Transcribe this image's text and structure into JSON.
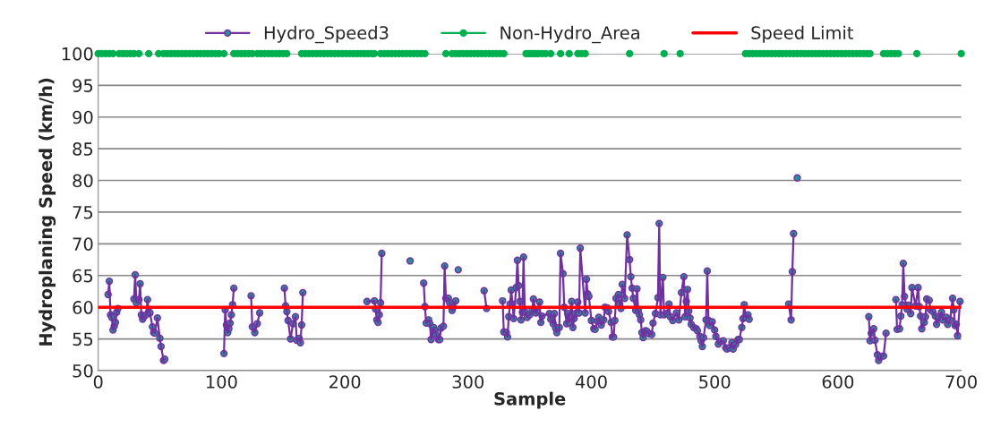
{
  "chart_data": {
    "type": "line",
    "xlabel": "Sample",
    "ylabel": "Hydroplaning Speed (km/h)",
    "xlim": [
      0,
      700
    ],
    "xticks": [
      0,
      100,
      200,
      300,
      400,
      500,
      600,
      700
    ],
    "ylim": [
      50,
      100
    ],
    "yticks": [
      50,
      55,
      60,
      65,
      70,
      75,
      80,
      85,
      90,
      95,
      100
    ],
    "grid": "y",
    "legend": "top",
    "marker": "circle",
    "series": [
      {
        "name": "Hydro_Speed3",
        "color": "#7030a0",
        "x": [
          8,
          9,
          10,
          11,
          12,
          13,
          14,
          15,
          16,
          22,
          29,
          30,
          31,
          33,
          34,
          35,
          36,
          37,
          39,
          40,
          41,
          42,
          44,
          45,
          46,
          48,
          50,
          51,
          53,
          54,
          78,
          102,
          103,
          104,
          105,
          106,
          107,
          108,
          109,
          110,
          117,
          124,
          125,
          127,
          129,
          131,
          140,
          151,
          152,
          153,
          154,
          156,
          158,
          160,
          161,
          163,
          164,
          165,
          166,
          190,
          218,
          224,
          225,
          226,
          227,
          228,
          229,
          230,
          240,
          253,
          258,
          264,
          265,
          266,
          268,
          269,
          270,
          272,
          273,
          274,
          276,
          277,
          278,
          280,
          281,
          282,
          284,
          285,
          287,
          288,
          290,
          291,
          292,
          300,
          313,
          315,
          320,
          328,
          329,
          331,
          332,
          333,
          334,
          335,
          336,
          337,
          339,
          340,
          341,
          342,
          343,
          344,
          345,
          346,
          348,
          350,
          352,
          353,
          355,
          356,
          358,
          359,
          360,
          366,
          367,
          369,
          370,
          371,
          372,
          374,
          375,
          377,
          378,
          380,
          381,
          382,
          384,
          385,
          386,
          387,
          389,
          390,
          391,
          395,
          396,
          397,
          398,
          400,
          402,
          403,
          405,
          406,
          408,
          410,
          411,
          413,
          414,
          416,
          417,
          418,
          419,
          420,
          422,
          423,
          424,
          425,
          427,
          429,
          431,
          432,
          433,
          434,
          436,
          437,
          438,
          439,
          440,
          441,
          442,
          444,
          445,
          447,
          449,
          450,
          452,
          454,
          455,
          456,
          458,
          459,
          461,
          463,
          464,
          466,
          469,
          471,
          473,
          475,
          476,
          477,
          478,
          479,
          480,
          481,
          483,
          485,
          486,
          488,
          489,
          490,
          491,
          493,
          494,
          495,
          496,
          498,
          500,
          501,
          503,
          505,
          507,
          509,
          510,
          512,
          514,
          515,
          517,
          519,
          520,
          522,
          523,
          524,
          525,
          527,
          528,
          545,
          560,
          562,
          563,
          564,
          566,
          567,
          600,
          625,
          626,
          627,
          628,
          629,
          630,
          632,
          633,
          635,
          637,
          639,
          643,
          647,
          648,
          650,
          651,
          652,
          653,
          654,
          656,
          657,
          659,
          660,
          663,
          665,
          666,
          667,
          668,
          670,
          671,
          672,
          674,
          675,
          677,
          679,
          680,
          682,
          684,
          685,
          688,
          689,
          691,
          693,
          694,
          695,
          696,
          697,
          699
        ],
        "values": [
          62.0,
          64.1,
          58.8,
          58.4,
          56.4,
          57.0,
          57.6,
          59.2,
          59.8,
          null,
          61.3,
          65.1,
          60.7,
          61.2,
          63.7,
          58.8,
          58.1,
          58.5,
          58.8,
          61.2,
          59.3,
          59.1,
          56.9,
          56.0,
          55.9,
          58.3,
          55.1,
          53.8,
          51.6,
          51.8,
          null,
          52.7,
          59.6,
          57.2,
          56.0,
          56.6,
          57.5,
          58.8,
          60.4,
          63.0,
          null,
          61.8,
          56.9,
          56.0,
          57.4,
          59.1,
          null,
          63.0,
          60.2,
          59.3,
          57.9,
          55.0,
          57.4,
          58.5,
          54.8,
          55.1,
          54.4,
          57.2,
          62.3,
          null,
          60.9,
          61.0,
          59.7,
          58.0,
          57.6,
          58.8,
          60.7,
          68.5,
          null,
          67.3,
          null,
          63.8,
          60.1,
          57.5,
          58.0,
          57.4,
          54.9,
          56.8,
          56.3,
          55.7,
          54.9,
          54.9,
          56.7,
          57.0,
          66.5,
          61.4,
          61.4,
          60.7,
          59.5,
          60.0,
          61.0,
          null,
          65.9,
          null,
          62.6,
          59.8,
          null,
          61.0,
          56.1,
          56.0,
          55.3,
          58.5,
          60.5,
          62.7,
          60.5,
          58.2,
          63.1,
          67.4,
          63.4,
          60.9,
          58.0,
          59.2,
          67.9,
          59.3,
          58.4,
          58.8,
          59.5,
          61.3,
          59.1,
          59.5,
          60.8,
          57.6,
          58.6,
          59.0,
          58.1,
          57.4,
          59.0,
          56.7,
          56.0,
          56.8,
          68.5,
          65.3,
          60.0,
          57.4,
          59.0,
          57.6,
          60.9,
          56.8,
          58.2,
          59.0,
          60.8,
          59.1,
          69.3,
          59.1,
          64.4,
          62.1,
          61.7,
          57.9,
          56.6,
          56.5,
          57.8,
          58.4,
          57.2,
          58.0,
          60.0,
          59.9,
          59.3,
          57.6,
          55.3,
          55.3,
          57.9,
          61.4,
          62.0,
          60.5,
          59.8,
          63.6,
          61.4,
          71.4,
          67.5,
          64.8,
          63.0,
          61.4,
          59.5,
          62.9,
          59.5,
          58.8,
          58.0,
          56.0,
          55.2,
          56.3,
          56.2,
          55.8,
          55.7,
          57.5,
          59.0,
          61.5,
          73.2,
          58.8,
          64.7,
          58.8,
          59.0,
          60.5,
          58.5,
          57.9,
          59.1,
          58.0,
          62.3,
          64.8,
          58.5,
          60.9,
          62.8,
          59.4,
          58.3,
          57.3,
          56.8,
          56.6,
          56.3,
          55.4,
          54.7,
          53.8,
          55.2,
          58.0,
          65.7,
          57.9,
          57.1,
          57.7,
          56.4,
          55.4,
          54.2,
          54.6,
          54.7,
          53.6,
          53.4,
          53.6,
          54.4,
          53.4,
          54.1,
          54.9,
          54.9,
          56.8,
          58.2,
          60.4,
          58.4,
          58.8,
          58.1,
          null,
          60.5,
          58.0,
          65.6,
          71.6,
          null,
          80.4,
          null,
          58.5,
          54.7,
          55.9,
          56.4,
          56.6,
          54.8,
          52.5,
          51.6,
          52.2,
          52.3,
          55.9,
          null,
          61.2,
          56.5,
          56.6,
          58.6,
          60.4,
          66.9,
          61.7,
          59.7,
          60.3,
          59.0,
          63.1,
          60.2,
          63.1,
          60.1,
          58.6,
          56.6,
          57.6,
          58.5,
          61.3,
          61.1,
          59.6,
          59.3,
          58.6,
          57.3,
          58.3,
          59.2,
          58.0,
          58.4,
          57.3,
          58.0,
          61.4,
          59.6,
          57.1,
          57.3,
          55.5,
          60.9
        ]
      },
      {
        "name": "Non-Hydro_Area",
        "type": "scatter",
        "color": "#00b050",
        "x": [
          0,
          3,
          6,
          9,
          12,
          14,
          17,
          20,
          23,
          26,
          29,
          33,
          37,
          41,
          45,
          49,
          51,
          53,
          56,
          59,
          62,
          65,
          68,
          71,
          74,
          77,
          80,
          83,
          86,
          89,
          92,
          95,
          98,
          102,
          106,
          110,
          113,
          116,
          119,
          122,
          125,
          127,
          129,
          132,
          135,
          138,
          141,
          144,
          147,
          150,
          153,
          159,
          165,
          168,
          171,
          174,
          177,
          180,
          183,
          186,
          189,
          192,
          195,
          198,
          201,
          204,
          207,
          210,
          213,
          216,
          219,
          222,
          224,
          226,
          229,
          232,
          235,
          238,
          241,
          244,
          247,
          250,
          253,
          256,
          259,
          262,
          265,
          273,
          282,
          284,
          287,
          290,
          293,
          296,
          299,
          302,
          305,
          308,
          311,
          314,
          317,
          320,
          323,
          326,
          329,
          338,
          347,
          349,
          351,
          353,
          355,
          357,
          360,
          363,
          367,
          371,
          375,
          378,
          382,
          385,
          389,
          392,
          395,
          413,
          431,
          445,
          459,
          465,
          472,
          498,
          525,
          528,
          531,
          534,
          537,
          540,
          543,
          546,
          549,
          552,
          555,
          558,
          561,
          564,
          567,
          570,
          573,
          576,
          579,
          582,
          585,
          588,
          591,
          594,
          597,
          600,
          603,
          606,
          609,
          612,
          615,
          618,
          621,
          624,
          626,
          631,
          637,
          640,
          643,
          646,
          649,
          656,
          664,
          682,
          700
        ],
        "values": [
          100,
          100,
          100,
          100,
          100,
          null,
          100,
          100,
          100,
          100,
          100,
          100,
          null,
          100,
          null,
          100,
          null,
          100,
          100,
          100,
          100,
          100,
          100,
          100,
          100,
          100,
          100,
          100,
          100,
          100,
          100,
          100,
          100,
          100,
          null,
          100,
          100,
          100,
          100,
          100,
          100,
          null,
          100,
          100,
          100,
          100,
          100,
          100,
          100,
          100,
          100,
          null,
          100,
          100,
          100,
          100,
          100,
          100,
          100,
          100,
          100,
          100,
          100,
          100,
          100,
          100,
          100,
          100,
          100,
          100,
          100,
          100,
          100,
          null,
          100,
          100,
          100,
          100,
          100,
          100,
          100,
          100,
          100,
          100,
          100,
          100,
          100,
          null,
          100,
          null,
          100,
          100,
          100,
          100,
          100,
          100,
          100,
          100,
          100,
          100,
          100,
          100,
          100,
          100,
          100,
          null,
          100,
          100,
          100,
          100,
          100,
          100,
          100,
          100,
          100,
          null,
          100,
          null,
          100,
          null,
          100,
          100,
          100,
          null,
          100,
          null,
          100,
          null,
          100,
          null,
          100,
          100,
          100,
          100,
          100,
          100,
          100,
          100,
          100,
          100,
          100,
          100,
          100,
          100,
          100,
          100,
          100,
          100,
          100,
          100,
          100,
          100,
          100,
          100,
          100,
          100,
          100,
          100,
          100,
          100,
          100,
          100,
          100,
          100,
          100,
          null,
          100,
          100,
          100,
          100,
          100,
          null,
          100,
          null,
          100
        ]
      }
    ],
    "ref_lines": [
      {
        "axis": "y",
        "value": 60,
        "label": "Speed Limit",
        "color": "#ff0000"
      }
    ]
  }
}
